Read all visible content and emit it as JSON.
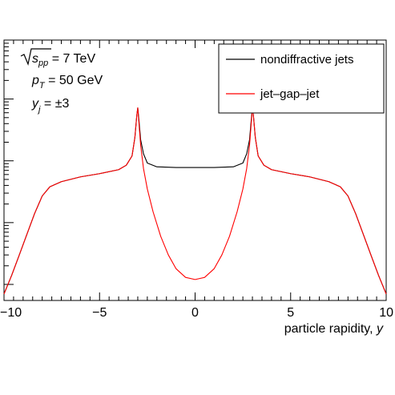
{
  "chart_data": {
    "type": "line",
    "xlabel_text": "particle rapidity, ",
    "xlabel_var": "y",
    "ylabel": "",
    "xlim": [
      -10,
      10
    ],
    "x_ticks": [
      {
        "value": -10,
        "label": "−10"
      },
      {
        "value": -5,
        "label": "−5"
      },
      {
        "value": 0,
        "label": "0"
      },
      {
        "value": 5,
        "label": "5"
      },
      {
        "value": 10,
        "label": "10"
      }
    ],
    "y_scale": "log",
    "y_decades": [
      0.01,
      0.1,
      1,
      10
    ],
    "ylim": [
      0.0055,
      90
    ],
    "grid": false,
    "legend_position": "top-right",
    "annotations": {
      "sqrt_s": "s",
      "sqrt_s_sub": "pp",
      "sqrt_s_value": " = 7 TeV",
      "pt": "p",
      "pt_sub": "T",
      "pt_value": " = 50 GeV",
      "yj": "y",
      "yj_sub": "j",
      "yj_value": " = ±3"
    },
    "series": [
      {
        "name": "nondiffractive jets",
        "color": "#000000",
        "points": [
          [
            -10.0,
            0.007
          ],
          [
            -9.6,
            0.014
          ],
          [
            -9.2,
            0.03
          ],
          [
            -8.8,
            0.065
          ],
          [
            -8.4,
            0.14
          ],
          [
            -8.0,
            0.27
          ],
          [
            -7.6,
            0.38
          ],
          [
            -7.0,
            0.46
          ],
          [
            -6.0,
            0.55
          ],
          [
            -5.0,
            0.62
          ],
          [
            -4.0,
            0.72
          ],
          [
            -3.6,
            0.85
          ],
          [
            -3.3,
            1.2
          ],
          [
            -3.15,
            2.4
          ],
          [
            -3.05,
            5.5
          ],
          [
            -3.0,
            7.2
          ],
          [
            -2.95,
            5.0
          ],
          [
            -2.85,
            2.2
          ],
          [
            -2.7,
            1.3
          ],
          [
            -2.5,
            0.92
          ],
          [
            -2.0,
            0.8
          ],
          [
            -1.0,
            0.78
          ],
          [
            0.0,
            0.78
          ],
          [
            1.0,
            0.78
          ],
          [
            2.0,
            0.8
          ],
          [
            2.5,
            0.92
          ],
          [
            2.7,
            1.3
          ],
          [
            2.85,
            2.2
          ],
          [
            2.95,
            5.0
          ],
          [
            3.0,
            7.2
          ],
          [
            3.05,
            5.5
          ],
          [
            3.15,
            2.4
          ],
          [
            3.3,
            1.2
          ],
          [
            3.6,
            0.85
          ],
          [
            4.0,
            0.72
          ],
          [
            5.0,
            0.62
          ],
          [
            6.0,
            0.55
          ],
          [
            7.0,
            0.46
          ],
          [
            7.6,
            0.38
          ],
          [
            8.0,
            0.27
          ],
          [
            8.4,
            0.14
          ],
          [
            8.8,
            0.065
          ],
          [
            9.2,
            0.03
          ],
          [
            9.6,
            0.014
          ],
          [
            10.0,
            0.007
          ]
        ]
      },
      {
        "name": "jet–gap–jet",
        "color": "#ff0000",
        "points": [
          [
            -10.0,
            0.007
          ],
          [
            -9.6,
            0.014
          ],
          [
            -9.2,
            0.03
          ],
          [
            -8.8,
            0.065
          ],
          [
            -8.4,
            0.14
          ],
          [
            -8.0,
            0.27
          ],
          [
            -7.6,
            0.38
          ],
          [
            -7.0,
            0.46
          ],
          [
            -6.0,
            0.55
          ],
          [
            -5.0,
            0.62
          ],
          [
            -4.0,
            0.72
          ],
          [
            -3.6,
            0.85
          ],
          [
            -3.3,
            1.2
          ],
          [
            -3.15,
            2.4
          ],
          [
            -3.05,
            5.5
          ],
          [
            -3.0,
            7.2
          ],
          [
            -2.95,
            4.5
          ],
          [
            -2.85,
            1.8
          ],
          [
            -2.7,
            0.75
          ],
          [
            -2.5,
            0.35
          ],
          [
            -2.2,
            0.15
          ],
          [
            -1.8,
            0.06
          ],
          [
            -1.4,
            0.03
          ],
          [
            -1.0,
            0.018
          ],
          [
            -0.5,
            0.013
          ],
          [
            0.0,
            0.012
          ],
          [
            0.5,
            0.013
          ],
          [
            1.0,
            0.018
          ],
          [
            1.4,
            0.03
          ],
          [
            1.8,
            0.06
          ],
          [
            2.2,
            0.15
          ],
          [
            2.5,
            0.35
          ],
          [
            2.7,
            0.75
          ],
          [
            2.85,
            1.8
          ],
          [
            2.95,
            4.5
          ],
          [
            3.0,
            7.2
          ],
          [
            3.05,
            5.5
          ],
          [
            3.15,
            2.4
          ],
          [
            3.3,
            1.2
          ],
          [
            3.6,
            0.85
          ],
          [
            4.0,
            0.72
          ],
          [
            5.0,
            0.62
          ],
          [
            6.0,
            0.55
          ],
          [
            7.0,
            0.46
          ],
          [
            7.6,
            0.38
          ],
          [
            8.0,
            0.27
          ],
          [
            8.4,
            0.14
          ],
          [
            8.8,
            0.065
          ],
          [
            9.2,
            0.03
          ],
          [
            9.6,
            0.014
          ],
          [
            10.0,
            0.007
          ]
        ]
      }
    ]
  }
}
